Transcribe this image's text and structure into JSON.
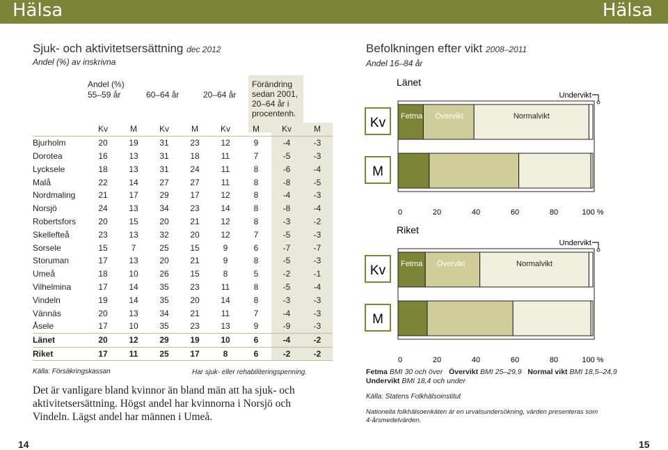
{
  "header": {
    "left_title": "Hälsa",
    "right_title": "Hälsa"
  },
  "left": {
    "title": "Sjuk- och aktivitetsersättning",
    "date": "dec 2012",
    "subtitle": "Andel (%) av inskrivna",
    "table": {
      "andel_label": "Andel (%)",
      "age_groups": [
        "55–59 år",
        "60–64 år",
        "20–64 år"
      ],
      "change_label": [
        "Förändring",
        "sedan 2001,",
        "20–64 år i",
        "procentenh."
      ],
      "sex_labels": [
        "Kv",
        "M",
        "Kv",
        "M",
        "Kv",
        "M",
        "Kv",
        "M"
      ],
      "rows": [
        {
          "name": "Bjurholm",
          "v": [
            "20",
            "19",
            "31",
            "23",
            "12",
            "9",
            "-4",
            "-3"
          ]
        },
        {
          "name": "Dorotea",
          "v": [
            "16",
            "13",
            "31",
            "18",
            "11",
            "7",
            "-5",
            "-3"
          ]
        },
        {
          "name": "Lycksele",
          "v": [
            "18",
            "13",
            "31",
            "24",
            "11",
            "8",
            "-6",
            "-4"
          ]
        },
        {
          "name": "Malå",
          "v": [
            "22",
            "14",
            "27",
            "27",
            "11",
            "8",
            "-8",
            "-5"
          ]
        },
        {
          "name": "Nordmaling",
          "v": [
            "21",
            "17",
            "29",
            "17",
            "12",
            "8",
            "-4",
            "-3"
          ]
        },
        {
          "name": "Norsjö",
          "v": [
            "24",
            "13",
            "34",
            "23",
            "14",
            "8",
            "-8",
            "-4"
          ]
        },
        {
          "name": "Robertsfors",
          "v": [
            "20",
            "15",
            "20",
            "21",
            "12",
            "8",
            "-3",
            "-2"
          ]
        },
        {
          "name": "Skellefteå",
          "v": [
            "23",
            "13",
            "32",
            "20",
            "12",
            "7",
            "-5",
            "-3"
          ]
        },
        {
          "name": "Sorsele",
          "v": [
            "15",
            "7",
            "25",
            "15",
            "9",
            "6",
            "-7",
            "-7"
          ]
        },
        {
          "name": "Storuman",
          "v": [
            "17",
            "13",
            "20",
            "21",
            "9",
            "8",
            "-5",
            "-3"
          ]
        },
        {
          "name": "Umeå",
          "v": [
            "18",
            "10",
            "26",
            "15",
            "8",
            "5",
            "-2",
            "-1"
          ]
        },
        {
          "name": "Vilhelmina",
          "v": [
            "17",
            "14",
            "35",
            "23",
            "11",
            "8",
            "-5",
            "-4"
          ]
        },
        {
          "name": "Vindeln",
          "v": [
            "19",
            "14",
            "35",
            "20",
            "14",
            "8",
            "-3",
            "-3"
          ]
        },
        {
          "name": "Vännäs",
          "v": [
            "20",
            "13",
            "34",
            "21",
            "11",
            "7",
            "-4",
            "-3"
          ]
        },
        {
          "name": "Åsele",
          "v": [
            "17",
            "10",
            "35",
            "23",
            "13",
            "9",
            "-9",
            "-3"
          ]
        }
      ],
      "totals": [
        {
          "name": "Länet",
          "v": [
            "20",
            "12",
            "29",
            "19",
            "10",
            "6",
            "-4",
            "-2"
          ]
        },
        {
          "name": "Riket",
          "v": [
            "17",
            "11",
            "25",
            "17",
            "8",
            "6",
            "-2",
            "-2"
          ]
        }
      ]
    },
    "source": "Källa: Försäkringskassan",
    "note": "Har sjuk- eller rehabiliteringspenning.",
    "body": "Det är vanligare bland kvinnor än bland män att ha sjuk- och aktivitetsersättning. Högst andel har kvinnorna i Norsjö och Vindeln. Lägst andel har männen i Umeå."
  },
  "right": {
    "title": "Befolkningen efter vikt",
    "date": "2008–2011",
    "subtitle": "Andel 16–84 år",
    "chart_data": [
      {
        "type": "bar",
        "orientation": "horizontal-stacked",
        "title": "Länet",
        "categories": [
          "Kv",
          "M"
        ],
        "series": [
          {
            "name": "Fetma",
            "values": [
              13,
              16
            ],
            "color": "#7c8437"
          },
          {
            "name": "Övervikt",
            "values": [
              26,
              46
            ],
            "color": "#cfcd9a"
          },
          {
            "name": "Normalvikt",
            "values": [
              59,
              37
            ],
            "color": "#f1efdd"
          },
          {
            "name": "Undervikt",
            "values": [
              2,
              1
            ],
            "color": "#ffffff"
          }
        ],
        "xlim": [
          0,
          100
        ],
        "x_ticks": [
          "0",
          "20",
          "40",
          "60",
          "80",
          "100 %"
        ]
      },
      {
        "type": "bar",
        "orientation": "horizontal-stacked",
        "title": "Riket",
        "categories": [
          "Kv",
          "M"
        ],
        "series": [
          {
            "name": "Fetma",
            "values": [
              14,
              15
            ],
            "color": "#7c8437"
          },
          {
            "name": "Övervikt",
            "values": [
              28,
              44
            ],
            "color": "#cfcd9a"
          },
          {
            "name": "Normalvikt",
            "values": [
              56,
              40
            ],
            "color": "#f1efdd"
          },
          {
            "name": "Undervikt",
            "values": [
              2,
              1
            ],
            "color": "#ffffff"
          }
        ],
        "xlim": [
          0,
          100
        ],
        "x_ticks": [
          "0",
          "20",
          "40",
          "60",
          "80",
          "100 %"
        ]
      }
    ],
    "legend": [
      {
        "name": "Fetma",
        "def": "BMI 30 och över"
      },
      {
        "name": "Övervikt",
        "def": "BMI 25–29,9"
      },
      {
        "name": "Normal vikt",
        "def": "BMI 18,5–24,9"
      },
      {
        "name": "Undervikt",
        "def": "BMI 18,4 och under"
      }
    ],
    "source": "Källa: Statens Folkhälsoinstitut",
    "footnote": "Nationella folkhälsoenkäten är en urvalsundersökning, värden presenteras som 4-årsmedelvärden."
  },
  "page_numbers": {
    "left": "14",
    "right": "15"
  }
}
